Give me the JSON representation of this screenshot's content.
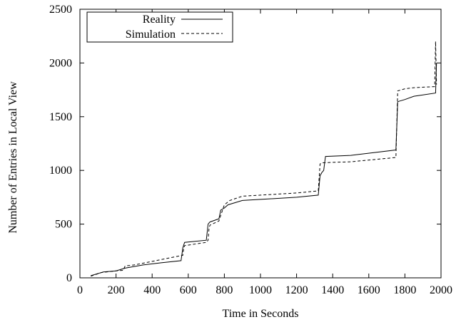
{
  "chart_data": {
    "type": "line",
    "title": "",
    "xlabel": "Time in Seconds",
    "ylabel": "Number of Entries in Local View",
    "xlim": [
      0,
      2000
    ],
    "ylim": [
      0,
      2500
    ],
    "xticks": [
      0,
      200,
      400,
      600,
      800,
      1000,
      1200,
      1400,
      1600,
      1800,
      2000
    ],
    "yticks": [
      0,
      500,
      1000,
      1500,
      2000,
      2500
    ],
    "grid": false,
    "legend": "top-left",
    "series": [
      {
        "name": "Reality",
        "style": "solid",
        "color": "#000000",
        "x": [
          60,
          130,
          200,
          250,
          350,
          450,
          560,
          570,
          580,
          700,
          710,
          720,
          770,
          780,
          800,
          820,
          900,
          1000,
          1200,
          1320,
          1330,
          1340,
          1350,
          1360,
          1500,
          1750,
          1760,
          1800,
          1850,
          1970,
          1975
        ],
        "y": [
          20,
          55,
          65,
          90,
          120,
          140,
          160,
          280,
          330,
          350,
          500,
          520,
          550,
          630,
          650,
          680,
          720,
          730,
          750,
          770,
          950,
          980,
          1000,
          1130,
          1140,
          1190,
          1640,
          1660,
          1690,
          1720,
          2000
        ]
      },
      {
        "name": "Simulation",
        "style": "dashed",
        "color": "#000000",
        "x": [
          60,
          120,
          200,
          240,
          250,
          300,
          450,
          570,
          575,
          580,
          700,
          710,
          715,
          720,
          770,
          780,
          800,
          830,
          900,
          1000,
          1200,
          1320,
          1330,
          1340,
          1400,
          1500,
          1750,
          1760,
          1800,
          1850,
          1965,
          1970,
          1975
        ],
        "y": [
          15,
          50,
          65,
          70,
          110,
          120,
          170,
          210,
          280,
          300,
          330,
          350,
          460,
          490,
          530,
          580,
          680,
          720,
          760,
          770,
          790,
          810,
          1060,
          1070,
          1075,
          1080,
          1120,
          1740,
          1760,
          1770,
          1780,
          2200,
          1800
        ]
      }
    ]
  }
}
